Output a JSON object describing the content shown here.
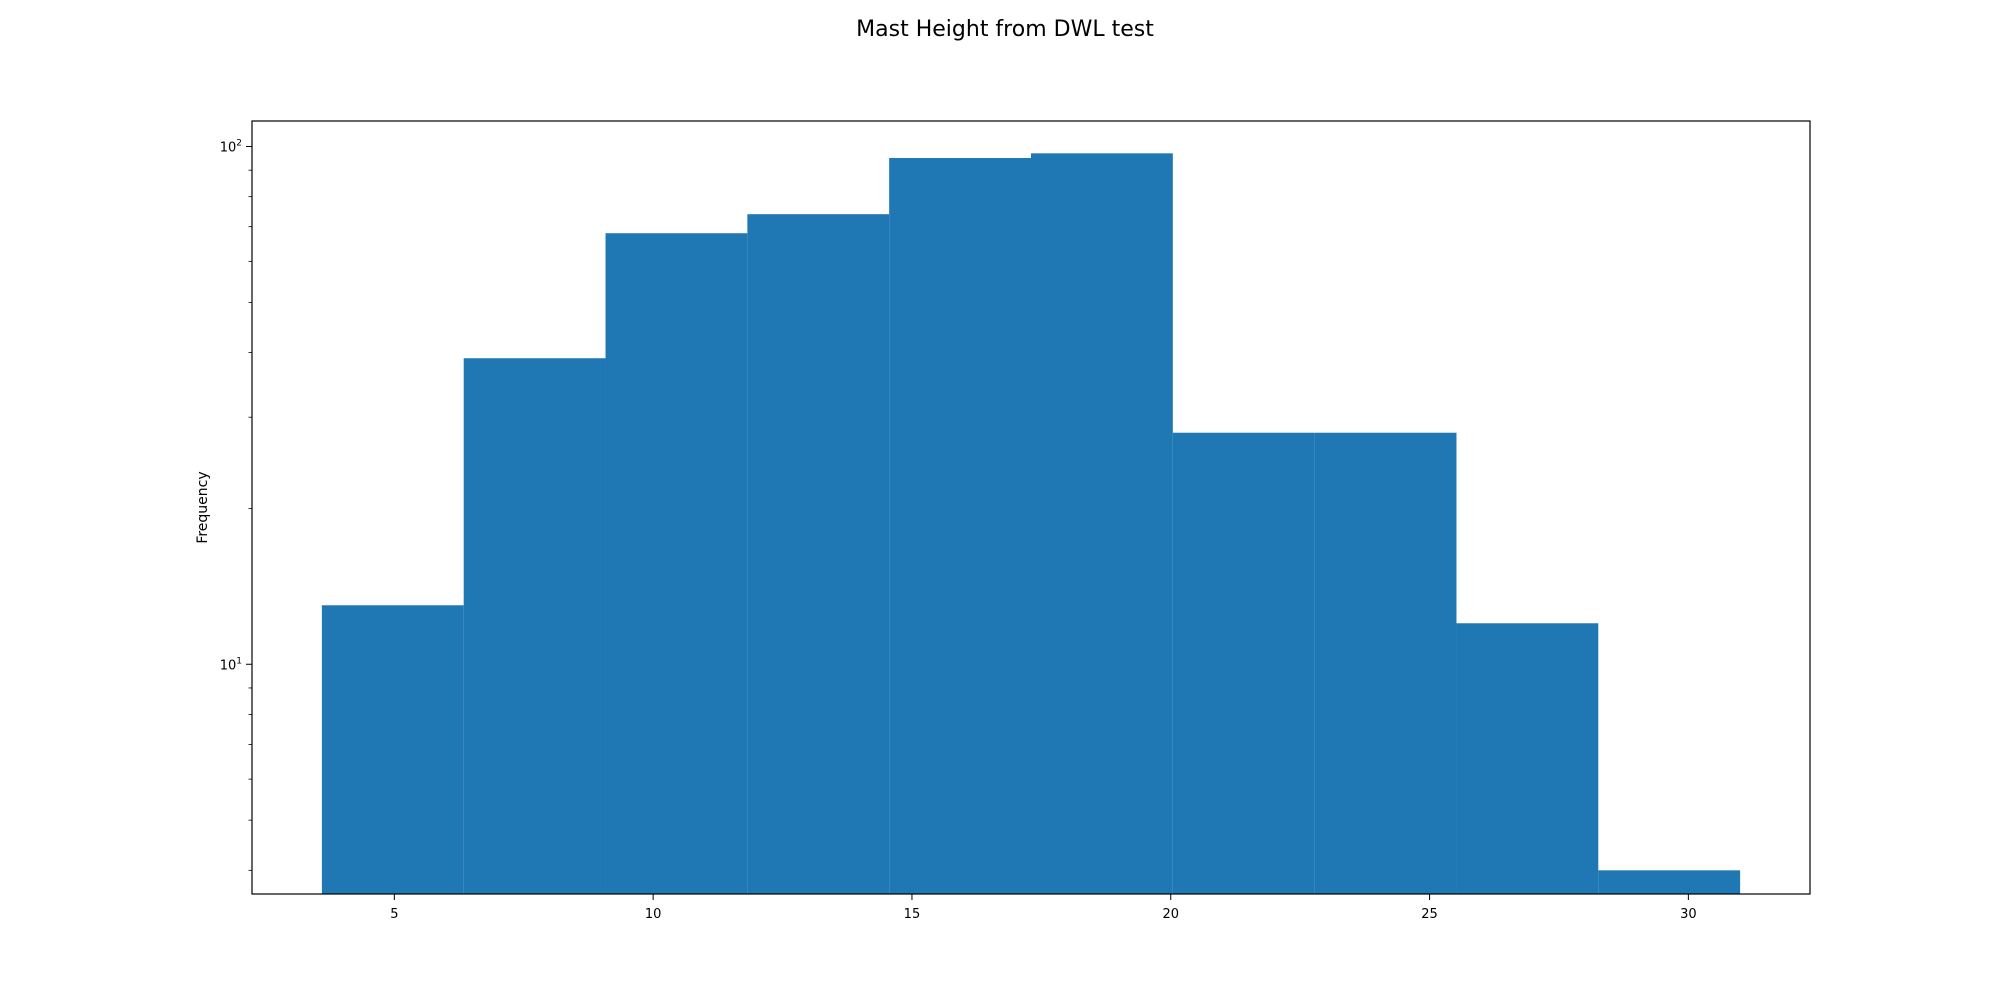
{
  "figure": {
    "title": "Mast Height from DWL test"
  },
  "chart_data": {
    "type": "bar",
    "title": "Mast Height from DWL test",
    "xlabel": "",
    "ylabel": "Frequency",
    "yscale": "log",
    "bin_edges": [
      3.6,
      6.34,
      9.08,
      11.82,
      14.56,
      17.3,
      20.04,
      22.78,
      25.52,
      28.26,
      31.0
    ],
    "values": [
      13,
      39,
      68,
      74,
      95,
      97,
      28,
      28,
      12,
      4
    ],
    "xlim": [
      2.25,
      32.35
    ],
    "ylim": [
      3.6,
      112
    ],
    "xticks": [
      5,
      10,
      15,
      20,
      25,
      30
    ],
    "xtick_labels": [
      "5",
      "10",
      "15",
      "20",
      "25",
      "30"
    ],
    "yticks_major": [
      {
        "value": 10,
        "base": "10",
        "exp": "1"
      },
      {
        "value": 100,
        "base": "10",
        "exp": "2"
      }
    ],
    "yticks_minor": [
      4,
      5,
      6,
      7,
      8,
      9,
      20,
      30,
      40,
      50,
      60,
      70,
      80,
      90
    ],
    "color": "#1f77b4",
    "grid": false,
    "legend": "none"
  }
}
